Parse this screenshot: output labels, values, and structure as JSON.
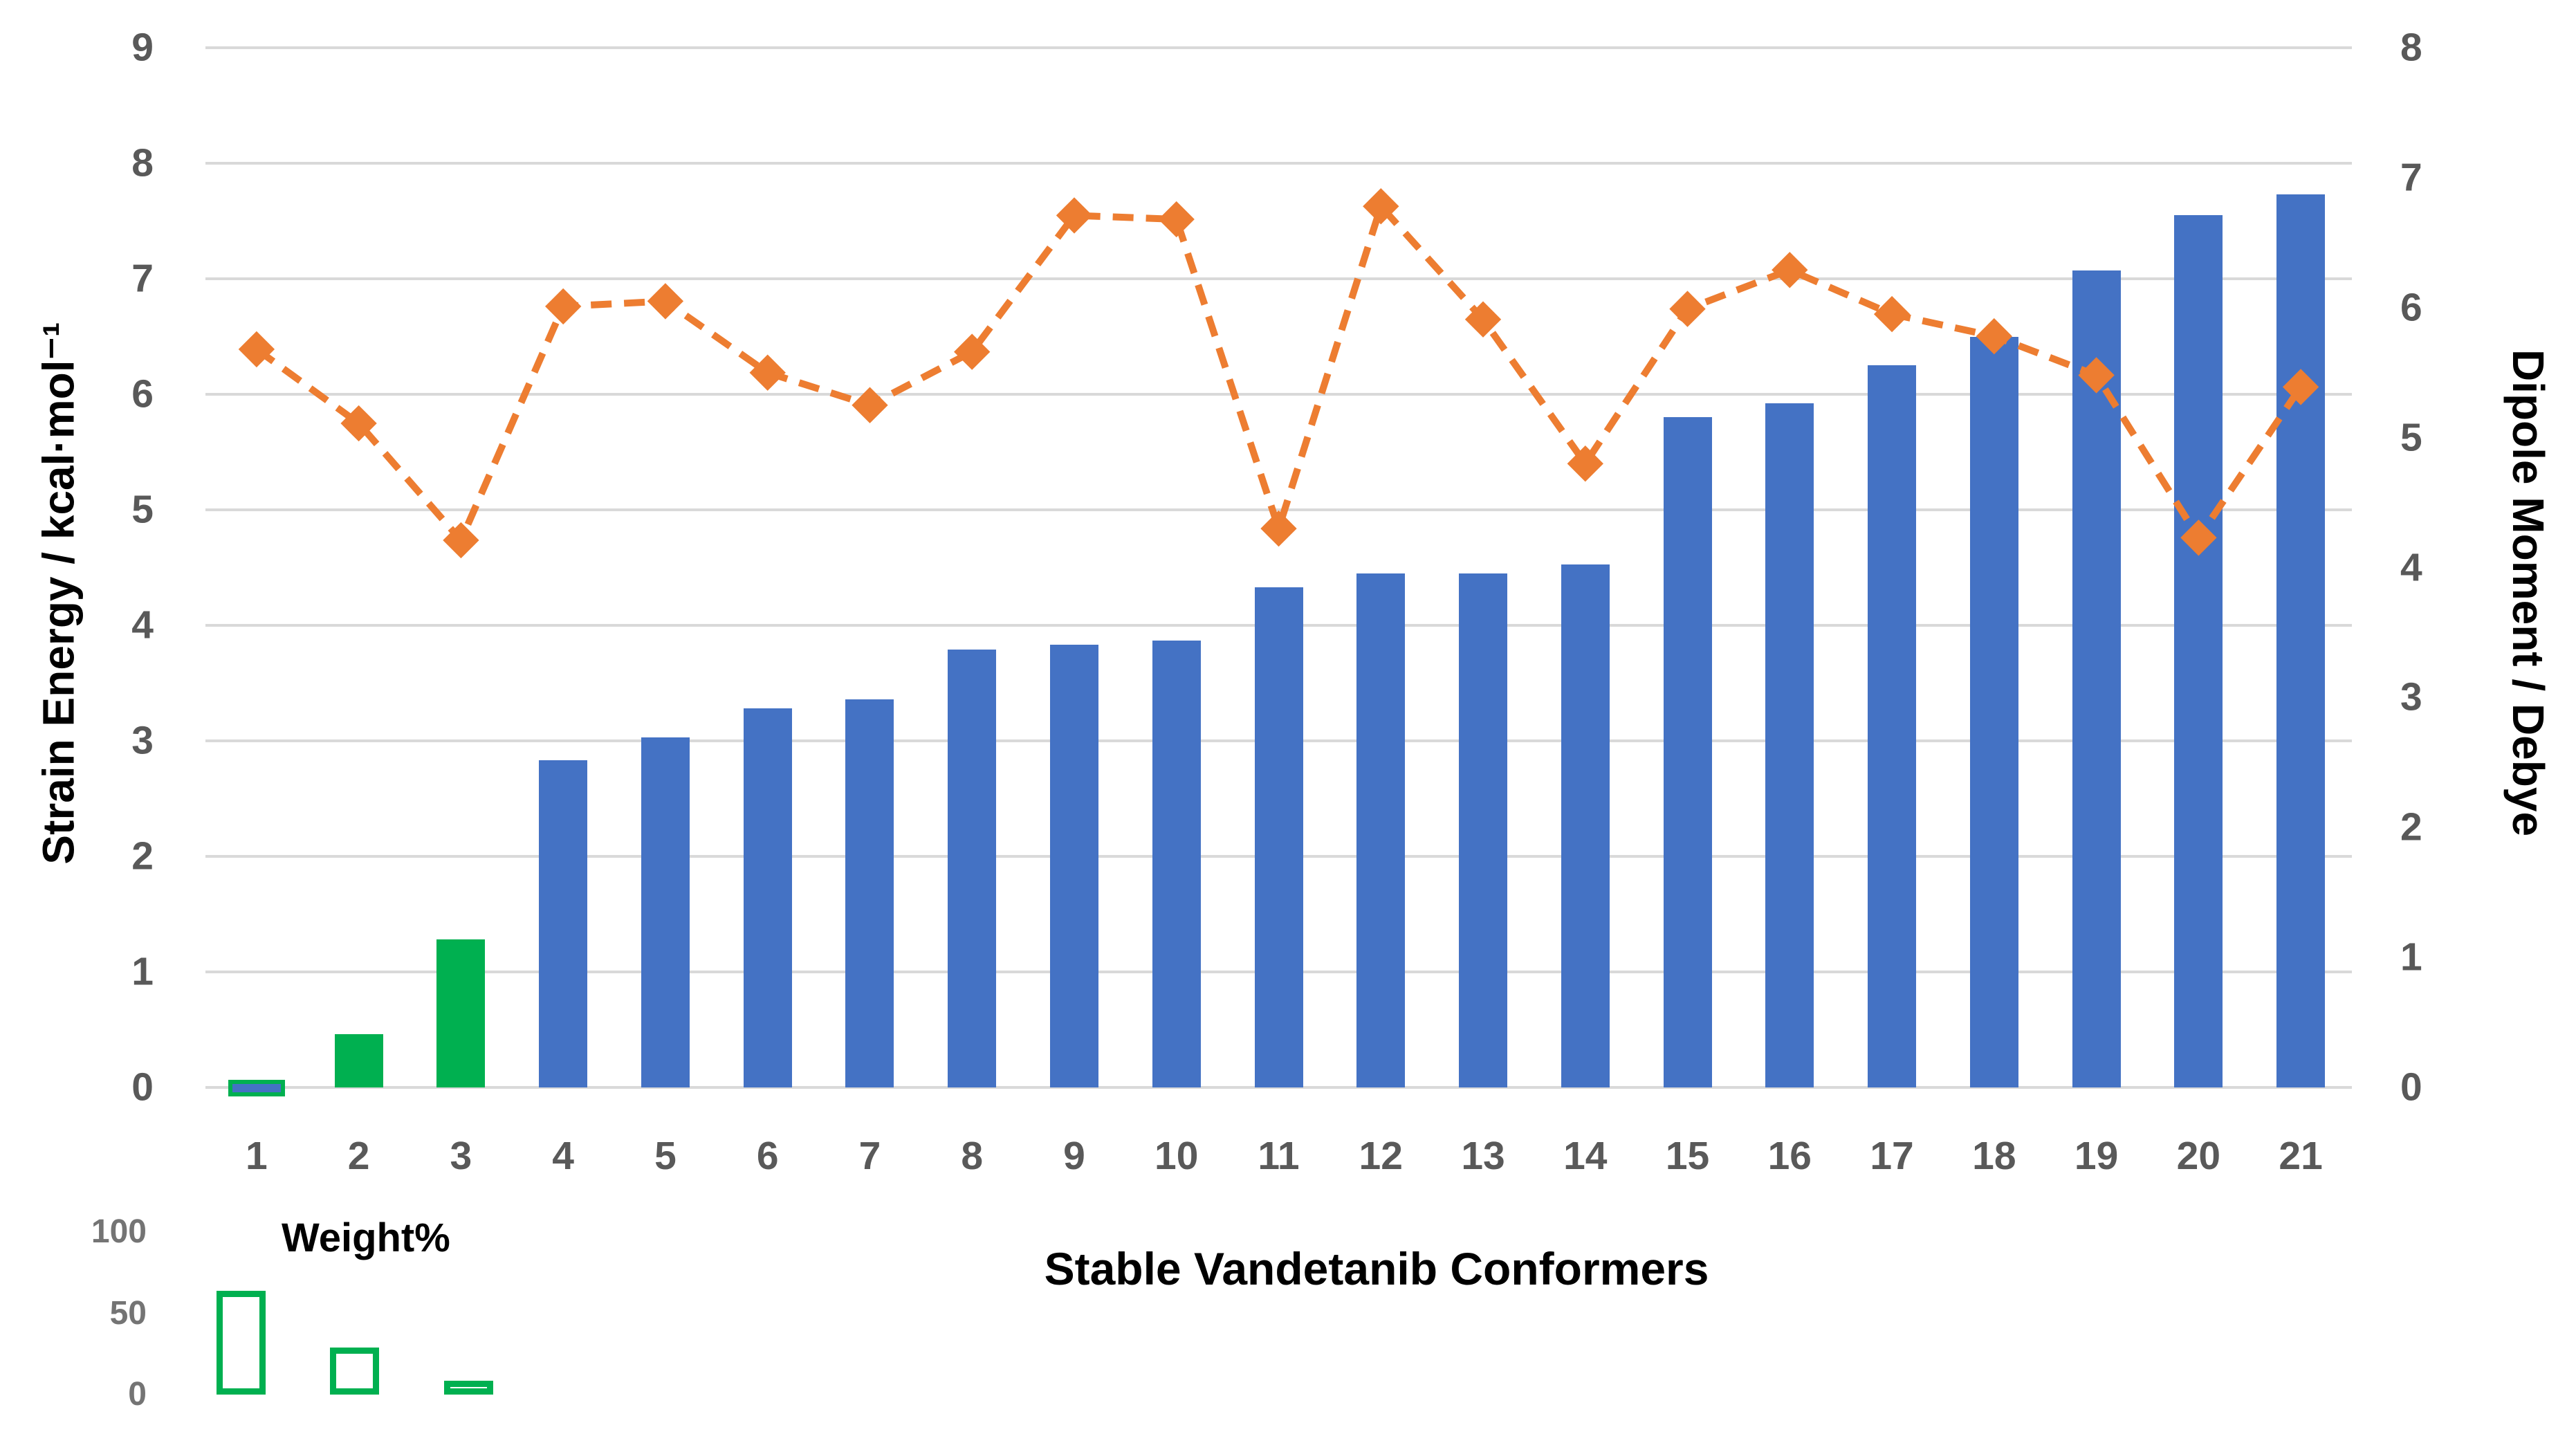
{
  "titles": {
    "x_axis_title": "Stable Vandetanib Conformers",
    "y_left_title": "Strain Energy / kcal·mol⁻¹",
    "y_right_title": "Dipole Moment / Debye",
    "inset_title": "Weight%"
  },
  "colors": {
    "bar_blue": "#4472C4",
    "bar_green": "#00B050",
    "line_orange": "#ED7D31",
    "gridline": "#d9d9d9",
    "tick_text": "#595959",
    "inset_tick_text": "#747474"
  },
  "chart_data": {
    "type": "bar+line combo with inset bar chart",
    "categories": [
      1,
      2,
      3,
      4,
      5,
      6,
      7,
      8,
      9,
      10,
      11,
      12,
      13,
      14,
      15,
      16,
      17,
      18,
      19,
      20,
      21
    ],
    "series": [
      {
        "name": "Strain Energy",
        "type": "bar",
        "axis": "left",
        "units": "kcal/mol",
        "values": [
          0.05,
          0.46,
          1.28,
          2.83,
          3.03,
          3.28,
          3.36,
          3.79,
          3.83,
          3.87,
          4.33,
          4.45,
          4.45,
          4.53,
          5.8,
          5.92,
          6.25,
          6.5,
          7.07,
          7.55,
          7.73
        ],
        "bar_colors": [
          "green-outlined-blue",
          "green",
          "green",
          "blue",
          "blue",
          "blue",
          "blue",
          "blue",
          "blue",
          "blue",
          "blue",
          "blue",
          "blue",
          "blue",
          "blue",
          "blue",
          "blue",
          "blue",
          "blue",
          "blue",
          "blue"
        ]
      },
      {
        "name": "Dipole Moment",
        "type": "line",
        "axis": "right",
        "units": "Debye",
        "line_style": "dashed",
        "marker": "diamond",
        "values": [
          5.68,
          5.11,
          4.21,
          6.01,
          6.05,
          5.5,
          5.25,
          5.66,
          6.71,
          6.68,
          4.3,
          6.78,
          5.91,
          4.8,
          5.99,
          6.29,
          5.95,
          5.78,
          5.48,
          4.23,
          5.39
        ]
      },
      {
        "name": "Weight%",
        "type": "bar-inset",
        "categories": [
          1,
          2,
          3
        ],
        "values": [
          64,
          29,
          8
        ]
      }
    ],
    "left_axis": {
      "label": "Strain Energy / kcal·mol⁻¹",
      "min": 0,
      "max": 9,
      "ticks": [
        "0",
        "1",
        "2",
        "3",
        "4",
        "5",
        "6",
        "7",
        "8",
        "9"
      ]
    },
    "right_axis": {
      "label": "Dipole Moment / Debye",
      "min": 0,
      "max": 8,
      "ticks": [
        "0",
        "1",
        "2",
        "3",
        "4",
        "5",
        "6",
        "7",
        "8"
      ]
    },
    "inset_axis": {
      "ticks": [
        "100",
        "50",
        "0"
      ]
    },
    "x_axis": {
      "label": "Stable Vandetanib Conformers",
      "tick_labels": [
        "1",
        "2",
        "3",
        "4",
        "5",
        "6",
        "7",
        "8",
        "9",
        "10",
        "11",
        "12",
        "13",
        "14",
        "15",
        "16",
        "17",
        "18",
        "19",
        "20",
        "21"
      ]
    },
    "grid": true,
    "legend": "none"
  }
}
